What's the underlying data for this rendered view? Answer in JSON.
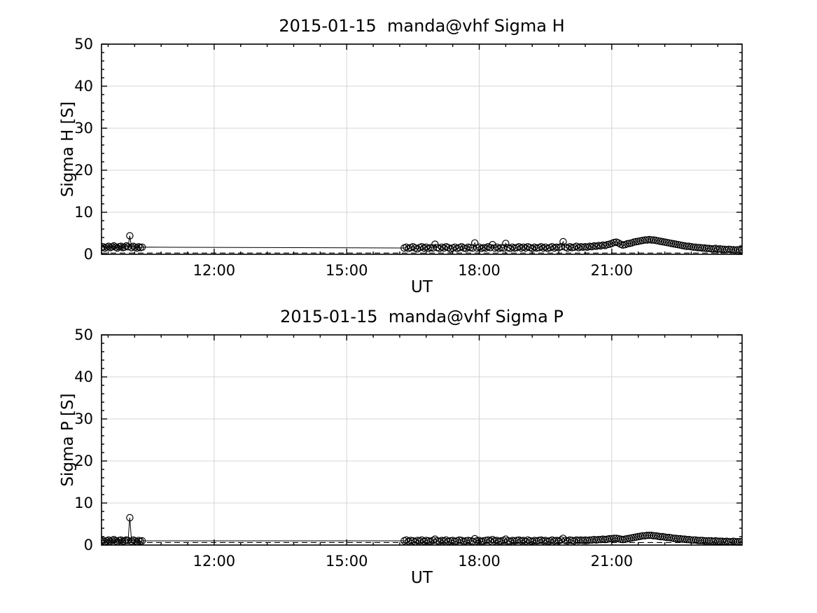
{
  "figure": {
    "background": "#ffffff",
    "text_color": "#000000",
    "grid_color": "#d4d4d4",
    "data_color": "#000000"
  },
  "chart_data": [
    {
      "type": "scatter",
      "title": "2015-01-15  manda@vhf Sigma H",
      "xlabel": "UT",
      "ylabel": "Sigma H [S]",
      "xlim": [
        9.45,
        23.95
      ],
      "ylim": [
        0,
        50
      ],
      "yticks": [
        {
          "value": 0,
          "label": "0"
        },
        {
          "value": 10,
          "label": "10"
        },
        {
          "value": 20,
          "label": "20"
        },
        {
          "value": 30,
          "label": "30"
        },
        {
          "value": 40,
          "label": "40"
        },
        {
          "value": 50,
          "label": "50"
        }
      ],
      "xticks": [
        {
          "value": 12,
          "label": "12:00"
        },
        {
          "value": 15,
          "label": "15:00"
        },
        {
          "value": 18,
          "label": "18:00"
        },
        {
          "value": 21,
          "label": "21:00"
        }
      ],
      "x_minor_step": 0.6,
      "y_minor_step": 2,
      "grid": true,
      "legend": "none",
      "marker": "open-circle",
      "dashed_baseline": 0.3,
      "segments": [
        {
          "x_start": 9.45,
          "x_step": 0.04,
          "values": [
            1.6,
            1.8,
            1.5,
            1.7,
            1.9,
            1.6,
            1.8,
            2.0,
            1.7,
            1.5,
            1.8,
            1.9,
            1.6,
            1.7,
            2.0,
            1.8,
            4.4,
            1.6,
            1.9,
            1.7,
            1.5,
            1.8,
            1.6,
            1.7
          ]
        },
        {
          "x_start": 16.3,
          "x_step": 0.05,
          "values": [
            1.5,
            1.7,
            1.4,
            1.6,
            1.8,
            1.5,
            1.3,
            1.6,
            1.8,
            1.5,
            1.7,
            1.4,
            1.6,
            1.5,
            2.4,
            1.6,
            1.4,
            1.7,
            1.5,
            1.8,
            1.6,
            1.3,
            1.5,
            1.7,
            1.4,
            1.6,
            1.8,
            1.5,
            1.4,
            1.7,
            1.6,
            1.5,
            2.7,
            1.5,
            1.7,
            1.4,
            1.6,
            1.5,
            1.8,
            1.6,
            2.3,
            1.5,
            1.7,
            1.4,
            1.6,
            1.5,
            2.6,
            1.6,
            1.4,
            1.7,
            1.5,
            1.6,
            1.8,
            1.5,
            1.7,
            1.5,
            1.8,
            1.6,
            1.4,
            1.7,
            1.5,
            1.6,
            1.8,
            1.5,
            1.7,
            1.4,
            1.6,
            1.8,
            1.5,
            1.7,
            1.6,
            1.8,
            3.0,
            1.7,
            1.5,
            1.8,
            1.6,
            1.7,
            1.9,
            1.6,
            1.8,
            1.7,
            1.8,
            1.7,
            1.9,
            1.8,
            2.0,
            1.9,
            2.1,
            2.0,
            2.2,
            2.1,
            2.3,
            2.4,
            2.6,
            2.8,
            2.9,
            2.7,
            2.4,
            2.2,
            2.3,
            2.5,
            2.6,
            2.7,
            2.9,
            3.0,
            3.1,
            3.2,
            3.3,
            3.4,
            3.4,
            3.5,
            3.4,
            3.4,
            3.3,
            3.2,
            3.1,
            3.0,
            2.9,
            2.8,
            2.7,
            2.6,
            2.5,
            2.4,
            2.3,
            2.2,
            2.1,
            2.0,
            1.9,
            1.9,
            1.8,
            1.7,
            1.7,
            1.6,
            1.6,
            1.5,
            1.5,
            1.4,
            1.4,
            1.3,
            1.3,
            1.4,
            1.2,
            1.3,
            1.2,
            1.2,
            1.1,
            1.2,
            1.1,
            1.1,
            1.0,
            1.1,
            1.0,
            1.1
          ]
        }
      ]
    },
    {
      "type": "scatter",
      "title": "2015-01-15  manda@vhf Sigma P",
      "xlabel": "UT",
      "ylabel": "Sigma P [S]",
      "xlim": [
        9.45,
        23.95
      ],
      "ylim": [
        0,
        50
      ],
      "yticks": [
        {
          "value": 0,
          "label": "0"
        },
        {
          "value": 10,
          "label": "10"
        },
        {
          "value": 20,
          "label": "20"
        },
        {
          "value": 30,
          "label": "30"
        },
        {
          "value": 40,
          "label": "40"
        },
        {
          "value": 50,
          "label": "50"
        }
      ],
      "xticks": [
        {
          "value": 12,
          "label": "12:00"
        },
        {
          "value": 15,
          "label": "15:00"
        },
        {
          "value": 18,
          "label": "18:00"
        },
        {
          "value": 21,
          "label": "21:00"
        }
      ],
      "x_minor_step": 0.6,
      "y_minor_step": 2,
      "grid": true,
      "legend": "none",
      "marker": "open-circle",
      "dashed_baseline": 0.6,
      "segments": [
        {
          "x_start": 9.45,
          "x_step": 0.04,
          "values": [
            0.9,
            1.1,
            0.8,
            1.0,
            1.2,
            0.9,
            1.1,
            1.3,
            1.0,
            0.8,
            1.1,
            1.2,
            0.9,
            1.0,
            1.2,
            1.1,
            6.5,
            0.9,
            1.2,
            1.0,
            0.8,
            1.1,
            0.9,
            1.0
          ]
        },
        {
          "x_start": 16.3,
          "x_step": 0.05,
          "values": [
            1.0,
            1.2,
            0.9,
            1.1,
            1.0,
            0.8,
            1.1,
            1.0,
            1.2,
            0.9,
            1.1,
            1.0,
            0.9,
            1.1,
            1.4,
            1.0,
            0.9,
            1.1,
            1.0,
            1.2,
            0.9,
            1.0,
            1.1,
            0.9,
            1.0,
            1.2,
            1.1,
            0.9,
            1.0,
            1.1,
            1.0,
            0.9,
            1.5,
            1.0,
            1.1,
            0.9,
            1.0,
            1.1,
            1.2,
            1.0,
            1.3,
            1.0,
            1.1,
            0.9,
            1.0,
            1.1,
            1.4,
            1.0,
            0.9,
            1.1,
            1.0,
            1.1,
            1.2,
            1.0,
            1.1,
            0.9,
            1.2,
            1.0,
            0.9,
            1.1,
            1.0,
            1.1,
            1.2,
            1.0,
            1.1,
            0.9,
            1.0,
            1.2,
            1.0,
            1.1,
            1.0,
            1.2,
            1.6,
            1.1,
            1.0,
            1.2,
            1.1,
            1.0,
            1.2,
            1.1,
            1.2,
            1.1,
            1.2,
            1.1,
            1.2,
            1.2,
            1.3,
            1.2,
            1.3,
            1.3,
            1.4,
            1.3,
            1.4,
            1.5,
            1.5,
            1.6,
            1.6,
            1.5,
            1.4,
            1.3,
            1.4,
            1.5,
            1.6,
            1.7,
            1.8,
            1.9,
            2.0,
            2.1,
            2.2,
            2.2,
            2.3,
            2.3,
            2.3,
            2.2,
            2.2,
            2.1,
            2.0,
            2.0,
            1.9,
            1.8,
            1.8,
            1.7,
            1.6,
            1.6,
            1.5,
            1.5,
            1.4,
            1.4,
            1.3,
            1.3,
            1.2,
            1.2,
            1.2,
            1.1,
            1.1,
            1.1,
            1.0,
            1.0,
            1.0,
            1.0,
            0.9,
            1.0,
            0.9,
            0.9,
            0.9,
            0.8,
            0.9,
            0.8,
            0.8,
            0.9,
            0.8,
            0.8,
            0.8,
            0.8
          ]
        }
      ]
    }
  ]
}
